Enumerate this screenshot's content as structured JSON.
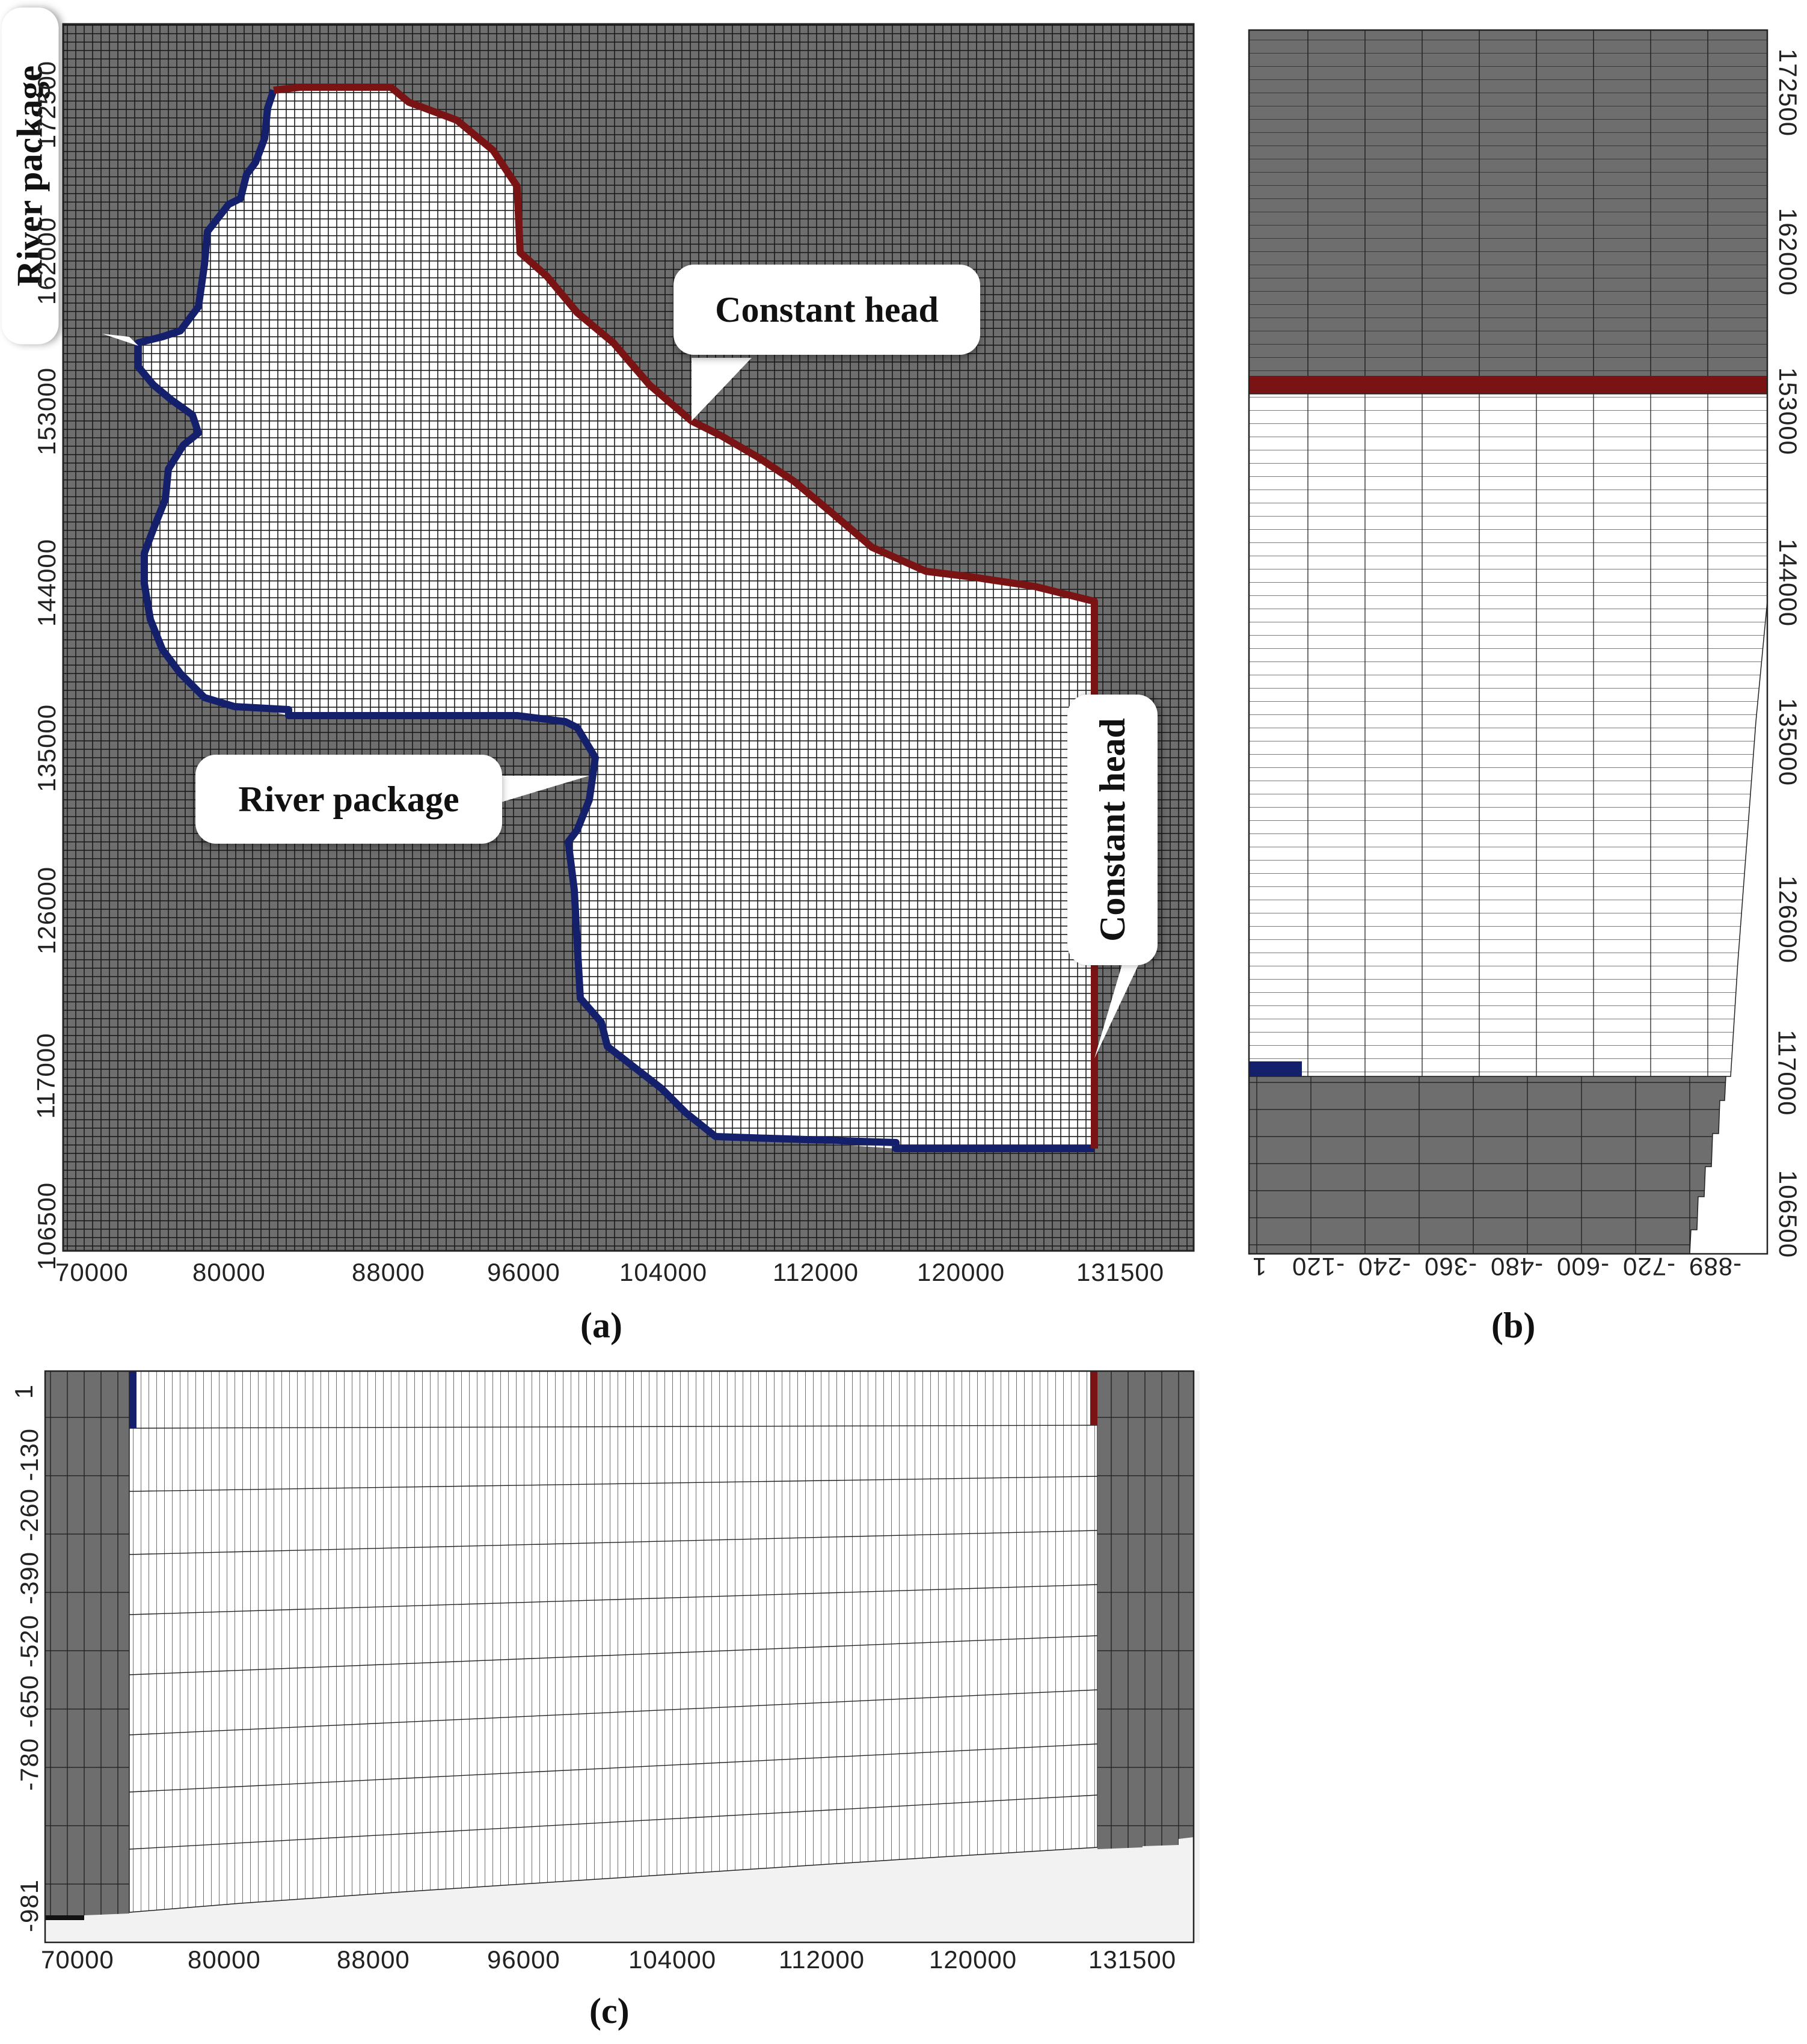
{
  "panel_a": {
    "caption": "(a)",
    "x_ticks": [
      "70000",
      "80000",
      "88000",
      "96000",
      "104000",
      "112000",
      "120000",
      "131500"
    ],
    "y_ticks": [
      "172500",
      "162000",
      "153000",
      "144000",
      "135000",
      "126000",
      "117000",
      "106500"
    ],
    "callouts": {
      "river_top": "River package",
      "constant_top": "Constant head",
      "river_mid": "River package",
      "constant_right": "Constant head"
    }
  },
  "panel_b": {
    "caption": "(b)",
    "x_ticks": [
      "1",
      "-120",
      "-240",
      "-360",
      "-480",
      "-600",
      "-720",
      "-889"
    ],
    "y_ticks": [
      "172500",
      "162000",
      "153000",
      "144000",
      "135000",
      "126000",
      "117000",
      "106500"
    ]
  },
  "panel_c": {
    "caption": "(c)",
    "x_ticks": [
      "70000",
      "80000",
      "88000",
      "96000",
      "104000",
      "112000",
      "120000",
      "131500"
    ],
    "y_ticks": [
      "1",
      "-130",
      "-260",
      "-390",
      "-520",
      "-650",
      "-780",
      "-981"
    ]
  },
  "colors": {
    "inactive_cell": "#6e6e6e",
    "active_cell": "#ffffff",
    "grid_line": "#111111",
    "river_boundary": "#14206b",
    "constant_head_boundary": "#7a1414"
  }
}
